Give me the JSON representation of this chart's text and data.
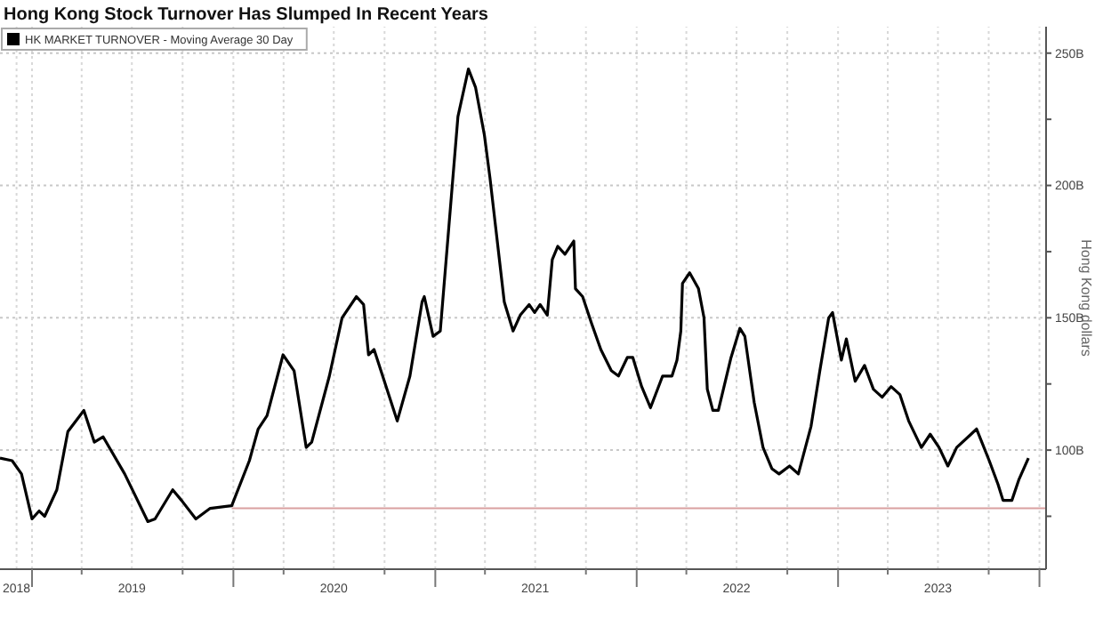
{
  "chart_data": {
    "type": "line",
    "title": "Hong Kong Stock Turnover Has Slumped In Recent Years",
    "ylabel": "Hong Kong dollars",
    "legend": "top left",
    "grid": true,
    "marker": "none",
    "line_style": "solid",
    "xlim": [
      "2018-11-04",
      "2024-01-13"
    ],
    "ylim": [
      55,
      260
    ],
    "yticks": [
      {
        "value": 75,
        "label": null
      },
      {
        "value": 100,
        "label": "100B"
      },
      {
        "value": 125,
        "label": null
      },
      {
        "value": 150,
        "label": "150B"
      },
      {
        "value": 175,
        "label": null
      },
      {
        "value": 200,
        "label": "200B"
      },
      {
        "value": 225,
        "label": null
      },
      {
        "value": 250,
        "label": "250B"
      }
    ],
    "xticks": [
      {
        "value": "2018-12-04",
        "label": "2018"
      },
      {
        "value": "2019-01-01",
        "label": null
      },
      {
        "value": "2019-04-01",
        "label": null
      },
      {
        "value": "2019-07-01",
        "label": "2019"
      },
      {
        "value": "2019-10-01",
        "label": null
      },
      {
        "value": "2020-01-01",
        "label": null
      },
      {
        "value": "2020-04-01",
        "label": null
      },
      {
        "value": "2020-07-01",
        "label": "2020"
      },
      {
        "value": "2020-10-01",
        "label": null
      },
      {
        "value": "2021-01-01",
        "label": null
      },
      {
        "value": "2021-04-01",
        "label": null
      },
      {
        "value": "2021-07-01",
        "label": "2021"
      },
      {
        "value": "2021-10-01",
        "label": null
      },
      {
        "value": "2022-01-01",
        "label": null
      },
      {
        "value": "2022-04-01",
        "label": null
      },
      {
        "value": "2022-07-01",
        "label": "2022"
      },
      {
        "value": "2022-10-01",
        "label": null
      },
      {
        "value": "2023-01-01",
        "label": null
      },
      {
        "value": "2023-04-01",
        "label": null
      },
      {
        "value": "2023-07-01",
        "label": "2023"
      },
      {
        "value": "2023-10-01",
        "label": null
      },
      {
        "value": "2024-01-01",
        "label": null
      }
    ],
    "series": [
      {
        "name": "HK MARKET TURNOVER - Moving Average 30 Day",
        "color": "#000000",
        "x": [
          "2018-11-04",
          "2018-11-26",
          "2018-12-13",
          "2019-01-01",
          "2019-01-14",
          "2019-01-24",
          "2019-02-15",
          "2019-03-07",
          "2019-04-05",
          "2019-04-24",
          "2019-05-10",
          "2019-06-18",
          "2019-07-30",
          "2019-08-12",
          "2019-09-13",
          "2019-09-29",
          "2019-10-25",
          "2019-11-20",
          "2019-12-29",
          "2020-01-30",
          "2020-02-15",
          "2020-03-02",
          "2020-03-31",
          "2020-04-20",
          "2020-05-12",
          "2020-05-22",
          "2020-06-23",
          "2020-07-16",
          "2020-08-11",
          "2020-08-24",
          "2020-09-02",
          "2020-09-12",
          "2020-10-24",
          "2020-11-16",
          "2020-12-08",
          "2020-12-12",
          "2020-12-28",
          "2021-01-10",
          "2021-02-11",
          "2021-03-02",
          "2021-03-15",
          "2021-03-31",
          "2021-04-10",
          "2021-05-06",
          "2021-05-22",
          "2021-06-04",
          "2021-06-20",
          "2021-06-30",
          "2021-07-10",
          "2021-07-23",
          "2021-08-01",
          "2021-08-11",
          "2021-08-24",
          "2021-09-09",
          "2021-09-12",
          "2021-09-25",
          "2021-10-11",
          "2021-10-28",
          "2021-11-16",
          "2021-11-29",
          "2021-12-15",
          "2021-12-25",
          "2022-01-10",
          "2022-01-26",
          "2022-02-17",
          "2022-03-06",
          "2022-03-15",
          "2022-03-22",
          "2022-03-25",
          "2022-04-07",
          "2022-04-23",
          "2022-05-03",
          "2022-05-09",
          "2022-05-19",
          "2022-05-29",
          "2022-06-21",
          "2022-07-07",
          "2022-07-16",
          "2022-08-02",
          "2022-08-18",
          "2022-09-03",
          "2022-09-16",
          "2022-10-05",
          "2022-10-21",
          "2022-11-13",
          "2022-11-29",
          "2022-12-15",
          "2022-12-22",
          "2023-01-07",
          "2023-01-16",
          "2023-02-01",
          "2023-02-18",
          "2023-03-06",
          "2023-03-22",
          "2023-04-07",
          "2023-04-23",
          "2023-05-09",
          "2023-06-01",
          "2023-06-17",
          "2023-07-03",
          "2023-07-19",
          "2023-08-04",
          "2023-08-30",
          "2023-09-09",
          "2023-10-02",
          "2023-10-18",
          "2023-10-27",
          "2023-11-12",
          "2023-11-25",
          "2023-12-12"
        ],
        "values": [
          97,
          96,
          91,
          74,
          77,
          75,
          85,
          107,
          115,
          103,
          105,
          91,
          73,
          74,
          85,
          81,
          74,
          78,
          79,
          96,
          108,
          113,
          136,
          130,
          101,
          103,
          128,
          150,
          158,
          155,
          136,
          138,
          111,
          128,
          156,
          158,
          143,
          145,
          226,
          244,
          237,
          219,
          203,
          156,
          145,
          151,
          155,
          152,
          155,
          151,
          172,
          177,
          174,
          179,
          161,
          158,
          148,
          138,
          130,
          128,
          135,
          135,
          124,
          116,
          128,
          128,
          134,
          145,
          163,
          167,
          161,
          150,
          123,
          115,
          115,
          135,
          146,
          143,
          118,
          101,
          93,
          91,
          94,
          91,
          109,
          130,
          150,
          152,
          134,
          142,
          126,
          132,
          123,
          120,
          124,
          121,
          111,
          101,
          106,
          101,
          94,
          101,
          106,
          108,
          96,
          87,
          81,
          81,
          89,
          97
        ]
      },
      {
        "color": "#d9a0a0",
        "x": [
          "2019-12-29",
          "2024-01-13"
        ],
        "values": [
          78,
          78
        ]
      }
    ]
  }
}
